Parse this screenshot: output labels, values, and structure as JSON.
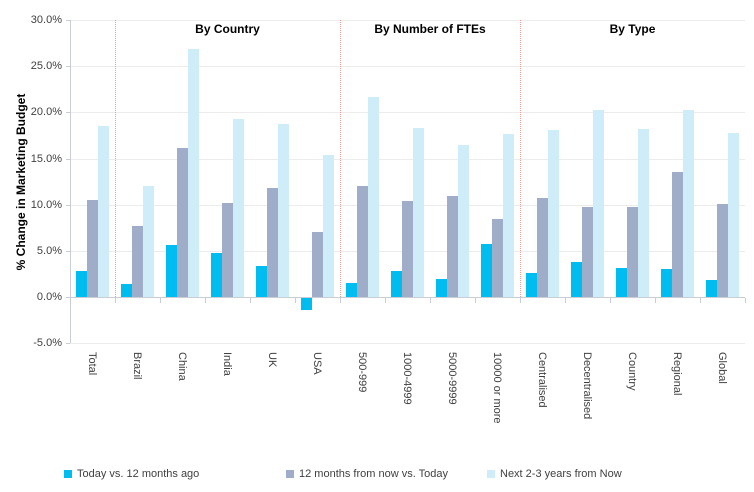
{
  "chart_data": {
    "type": "bar",
    "title": "",
    "ylabel": "% Change in Marketing Budget",
    "xlabel": "",
    "ylim": [
      -5,
      30
    ],
    "y_tick_step": 5,
    "y_tick_labels": [
      "30.0%",
      "25.0%",
      "20.0%",
      "15.0%",
      "10.0%",
      "5.0%",
      "0.0%",
      "-5.0%"
    ],
    "y_tick_values": [
      30,
      25,
      20,
      15,
      10,
      5,
      0,
      -5
    ],
    "grid": "on",
    "legend_position": "bottom",
    "categories": [
      "Total",
      "Brazil",
      "China",
      "India",
      "UK",
      "USA",
      "500-999",
      "1000-4999",
      "5000-9999",
      "10000 or more",
      "Centralised",
      "Decentralised",
      "Country",
      "Regional",
      "Global"
    ],
    "series": [
      {
        "name": "Today vs. 12 months ago",
        "color": "#00BDF0",
        "values": [
          2.8,
          1.4,
          5.6,
          4.8,
          3.4,
          -1.3,
          1.5,
          2.8,
          1.9,
          5.7,
          2.6,
          3.8,
          3.1,
          3.0,
          1.8
        ]
      },
      {
        "name": "12 months from now vs. Today",
        "color": "#9FADC9",
        "values": [
          10.5,
          7.7,
          16.1,
          10.2,
          11.8,
          7.0,
          12.0,
          10.4,
          10.9,
          8.4,
          10.7,
          9.8,
          9.8,
          13.5,
          10.1
        ]
      },
      {
        "name": "Next 2-3 years from Now",
        "color": "#CFEDF9",
        "values": [
          18.5,
          12.0,
          26.9,
          19.3,
          18.8,
          15.4,
          21.7,
          18.3,
          16.5,
          17.7,
          18.1,
          20.3,
          18.2,
          20.3,
          17.8
        ]
      }
    ],
    "groups": [
      {
        "label": "By Country",
        "from": 1,
        "to": 5
      },
      {
        "label": "By Number of FTEs",
        "from": 6,
        "to": 9
      },
      {
        "label": "By Type",
        "from": 10,
        "to": 14
      }
    ],
    "separators_after_category_index": [
      0,
      5,
      9
    ],
    "colors": {
      "gridline": "#ECECEC",
      "axis_line": "#C9CED6",
      "separator": "#F29B93",
      "tick_text": "#404040",
      "title_text": "#000000"
    }
  }
}
